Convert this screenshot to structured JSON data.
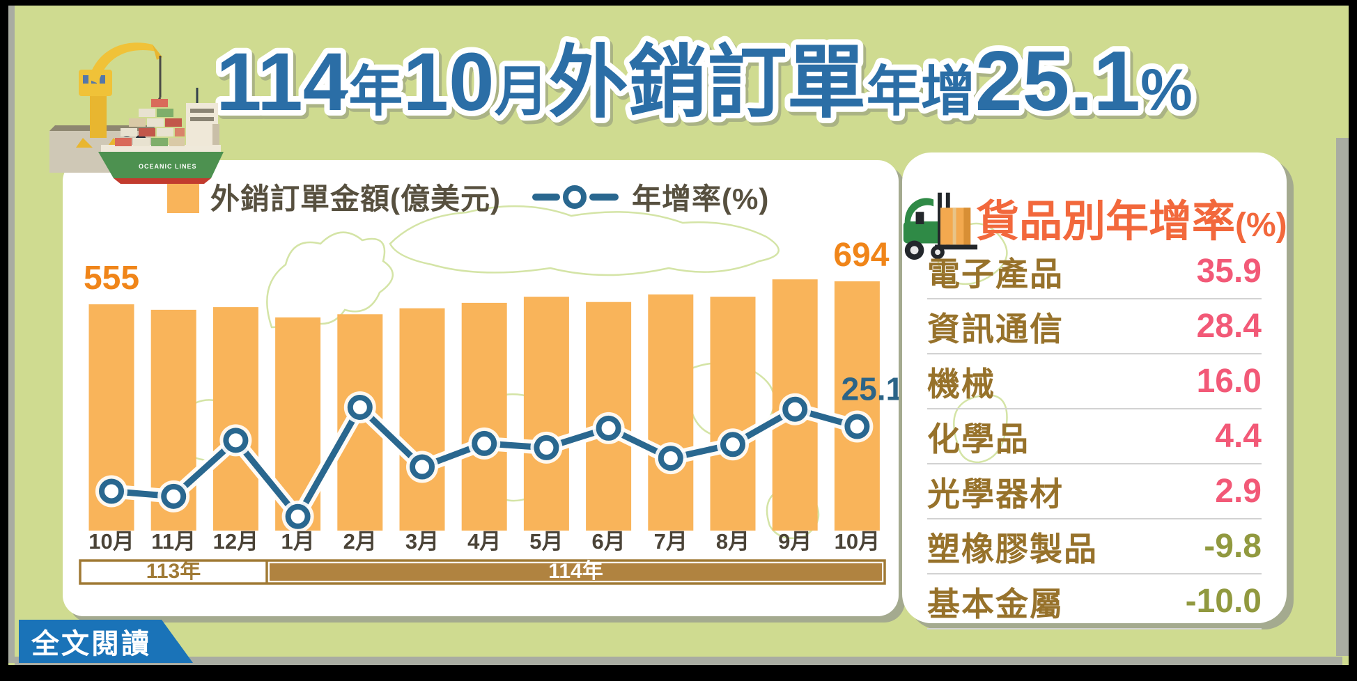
{
  "title": {
    "full": "114年10月外銷訂單年增25.1%",
    "p1": "114",
    "p2": "年",
    "p3": "10",
    "p4": "月",
    "p5": "外銷訂單",
    "p6": "年增",
    "p7": "25.1",
    "p8": "%"
  },
  "legend": {
    "amount_label": "外銷訂單金額(億美元)",
    "rate_label": "年增率(%)"
  },
  "chart_data": {
    "type": "bar+line",
    "categories": [
      "10月",
      "11月",
      "12月",
      "1月",
      "2月",
      "3月",
      "4月",
      "5月",
      "6月",
      "7月",
      "8月",
      "9月",
      "10月"
    ],
    "year_groups": [
      {
        "label": "113年",
        "months": 3
      },
      {
        "label": "114年",
        "months": 10
      }
    ],
    "series": [
      {
        "name": "外銷訂單金額(億美元)",
        "type": "bar",
        "values": [
          555,
          522,
          538,
          476,
          495,
          531,
          564,
          601,
          569,
          615,
          601,
          706,
          694
        ]
      },
      {
        "name": "年增率(%)",
        "type": "line",
        "values": [
          4.9,
          3.3,
          20.8,
          -3.0,
          31.1,
          12.5,
          19.8,
          18.5,
          24.6,
          15.2,
          19.5,
          30.5,
          25.1
        ]
      }
    ],
    "visible_labels": {
      "first_bar": "555",
      "last_bar": "694",
      "last_point": "25.1"
    },
    "grid": false,
    "legend_position": "top"
  },
  "right_panel": {
    "heading": "貨品別年增率",
    "heading_unit": "(%)",
    "products": [
      {
        "name": "電子產品",
        "value": "35.9",
        "direction": "pos"
      },
      {
        "name": "資訊通信",
        "value": "28.4",
        "direction": "pos"
      },
      {
        "name": "機械",
        "value": "16.0",
        "direction": "pos"
      },
      {
        "name": "化學品",
        "value": "4.4",
        "direction": "pos"
      },
      {
        "name": "光學器材",
        "value": "2.9",
        "direction": "pos"
      },
      {
        "name": "塑橡膠製品",
        "value": "-9.8",
        "direction": "neg"
      },
      {
        "name": "基本金屬",
        "value": "-10.0",
        "direction": "neg"
      }
    ]
  },
  "button": {
    "label": "全文閱讀"
  },
  "ship_label": "OCEANIC LINES",
  "colors": {
    "page_bg": "#cfdb90",
    "frame": "#000000",
    "title_blue": "#2b6ea6",
    "bar_orange": "#f9b45a",
    "bar_label_orange": "#f08519",
    "line_blue": "#29678f",
    "legend_text": "#57503f",
    "month_text": "#4a4337",
    "band_brown": "#b08340",
    "band_border": "#a07a35",
    "heading_orange": "#f2683c",
    "product_brown": "#97722b",
    "positive_pink": "#f25977",
    "negative_olive": "#91993f",
    "button_blue": "#1a73b8",
    "map_green": "#d4e4a6"
  }
}
